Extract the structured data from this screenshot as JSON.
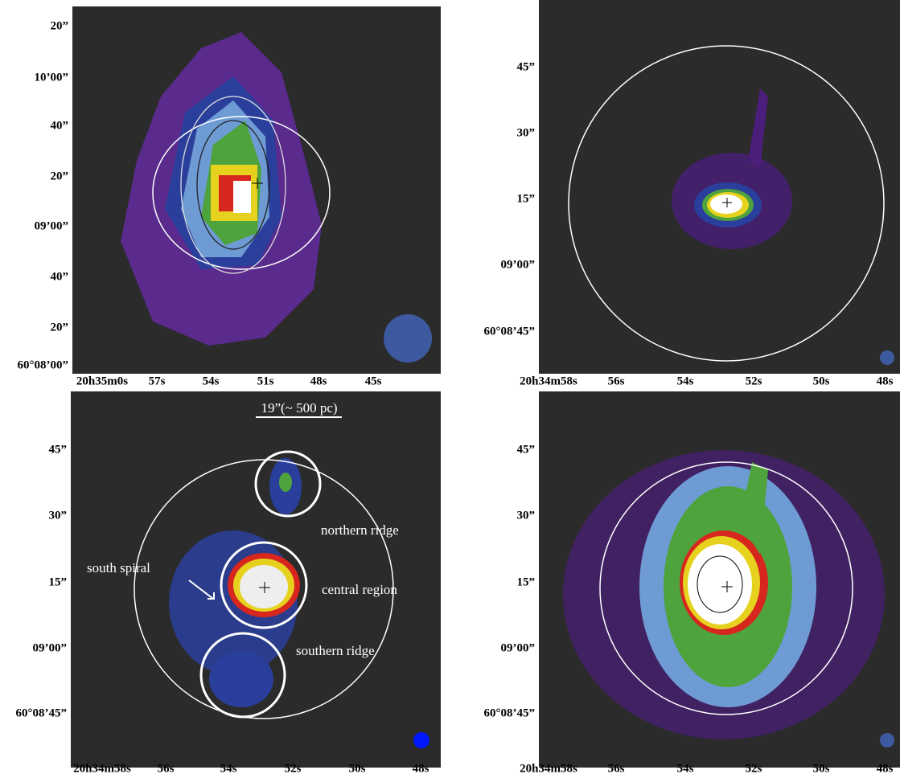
{
  "panels": [
    {
      "y_labels": [
        "20”",
        "10’00”",
        "40”",
        "20”",
        "09’00”",
        "40”",
        "20”",
        "60°08’00”"
      ],
      "x_labels": [
        "20h35m0s",
        "57s",
        "54s",
        "51s",
        "48s",
        "45s"
      ]
    },
    {
      "y_labels": [
        "45”",
        "30”",
        "15”",
        "09’00”",
        "60°08’45”"
      ],
      "x_labels": [
        "20h34m58s",
        "56s",
        "54s",
        "52s",
        "50s",
        "48s"
      ]
    },
    {
      "y_labels": [
        "45”",
        "30”",
        "15”",
        "09’00”",
        "60°08’45”"
      ],
      "x_labels": [
        "20h34m58s",
        "56s",
        "54s",
        "52s",
        "50s",
        "48s"
      ]
    },
    {
      "y_labels": [
        "45”",
        "30”",
        "15”",
        "09’00”",
        "60°08’45”"
      ],
      "x_labels": [
        "20h34m58s",
        "56s",
        "54s",
        "52s",
        "50s",
        "48s"
      ]
    }
  ],
  "annotations": {
    "scale_bar": "19”(~ 500 pc)",
    "northern_ridge": "northern ridge",
    "central_region": "central region",
    "southern_ridge": "southern ridge",
    "south_spiral": "south spiral"
  }
}
